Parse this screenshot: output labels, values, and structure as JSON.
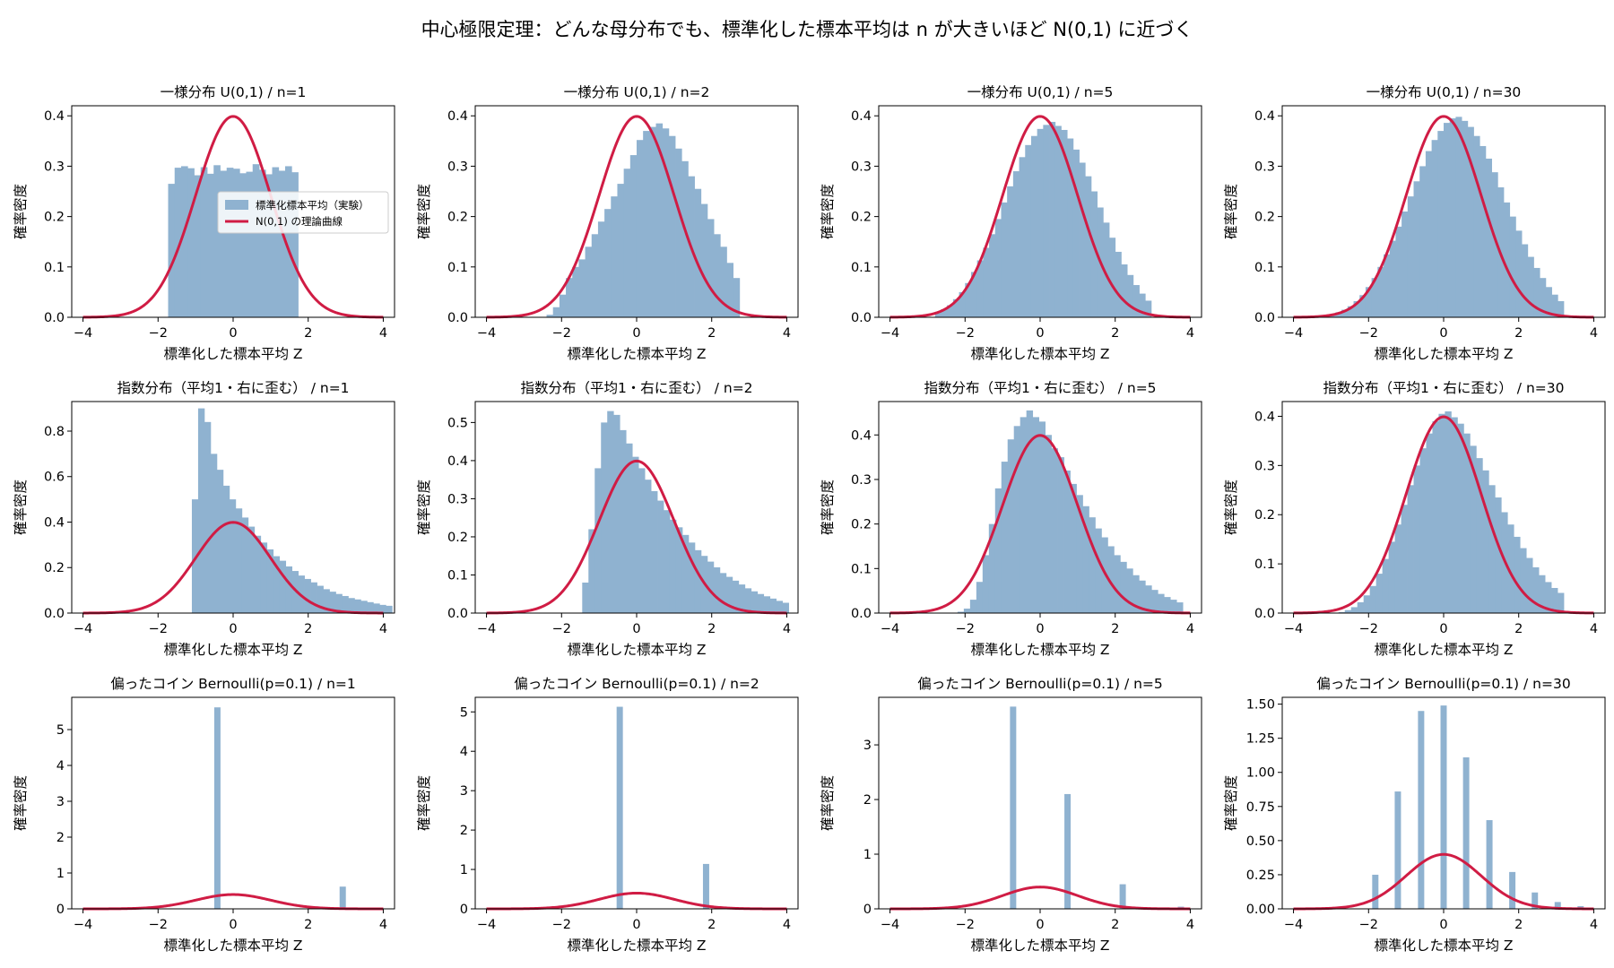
{
  "figure": {
    "suptitle": "中心極限定理：どんな母分布でも、標準化した標本平均は n が大きいほど N(0,1) に近づく",
    "xlabel": "標準化した標本平均 Z",
    "ylabel": "確率密度",
    "hist_color": "#8fb2d0",
    "curve_color": "#d01c44",
    "legend": {
      "hist_label": "標準化標本平均（実験）",
      "curve_label": "N(0,1) の理論曲線",
      "placement": "right"
    }
  },
  "chart_data": [
    {
      "type": "histogram",
      "title": "一様分布 U(0,1) / n=1",
      "xlim": [
        -4.3,
        4.3
      ],
      "ylim": [
        0,
        0.42
      ],
      "xticks": [
        -4,
        -2,
        0,
        2,
        4
      ],
      "yticks": [
        0.0,
        0.1,
        0.2,
        0.3,
        0.4
      ],
      "ytick_labels": [
        "0.0",
        "0.1",
        "0.2",
        "0.3",
        "0.4"
      ],
      "hist": {
        "x0": -1.732,
        "w": 0.1732,
        "values": [
          0.265,
          0.297,
          0.3,
          0.296,
          0.282,
          0.298,
          0.285,
          0.302,
          0.291,
          0.297,
          0.295,
          0.286,
          0.289,
          0.304,
          0.293,
          0.284,
          0.298,
          0.291,
          0.3,
          0.288
        ]
      },
      "legend": true
    },
    {
      "type": "histogram",
      "title": "一様分布 U(0,1) / n=2",
      "xlim": [
        -4.3,
        4.3
      ],
      "ylim": [
        0,
        0.42
      ],
      "xticks": [
        -4,
        -2,
        0,
        2,
        4
      ],
      "yticks": [
        0.0,
        0.1,
        0.2,
        0.3,
        0.4
      ],
      "ytick_labels": [
        "0.0",
        "0.1",
        "0.2",
        "0.3",
        "0.4"
      ],
      "hist": {
        "x0": -2.4,
        "w": 0.1714,
        "values": [
          0.005,
          0.02,
          0.045,
          0.078,
          0.1,
          0.115,
          0.14,
          0.165,
          0.19,
          0.215,
          0.24,
          0.265,
          0.295,
          0.322,
          0.352,
          0.37,
          0.378,
          0.385,
          0.375,
          0.36,
          0.335,
          0.31,
          0.28,
          0.255,
          0.225,
          0.195,
          0.165,
          0.14,
          0.108,
          0.078
        ]
      }
    },
    {
      "type": "histogram",
      "title": "一様分布 U(0,1) / n=5",
      "xlim": [
        -4.3,
        4.3
      ],
      "ylim": [
        0,
        0.42
      ],
      "xticks": [
        -4,
        -2,
        0,
        2,
        4
      ],
      "yticks": [
        0.0,
        0.1,
        0.2,
        0.3,
        0.4
      ],
      "ytick_labels": [
        "0.0",
        "0.1",
        "0.2",
        "0.3",
        "0.4"
      ],
      "hist": {
        "x0": -2.8,
        "w": 0.16,
        "values": [
          0.01,
          0.016,
          0.024,
          0.036,
          0.05,
          0.068,
          0.09,
          0.113,
          0.138,
          0.165,
          0.195,
          0.228,
          0.26,
          0.29,
          0.318,
          0.342,
          0.36,
          0.374,
          0.382,
          0.388,
          0.38,
          0.372,
          0.355,
          0.333,
          0.307,
          0.28,
          0.25,
          0.218,
          0.188,
          0.158,
          0.13,
          0.105,
          0.084,
          0.064,
          0.047,
          0.033
        ]
      }
    },
    {
      "type": "histogram",
      "title": "一様分布 U(0,1) / n=30",
      "xlim": [
        -4.3,
        4.3
      ],
      "ylim": [
        0,
        0.42
      ],
      "xticks": [
        -4,
        -2,
        0,
        2,
        4
      ],
      "yticks": [
        0.0,
        0.1,
        0.2,
        0.3,
        0.4
      ],
      "ytick_labels": [
        "0.0",
        "0.1",
        "0.2",
        "0.3",
        "0.4"
      ],
      "hist": {
        "x0": -3.2,
        "w": 0.16,
        "values": [
          0.004,
          0.006,
          0.01,
          0.015,
          0.022,
          0.032,
          0.044,
          0.06,
          0.078,
          0.1,
          0.125,
          0.152,
          0.18,
          0.21,
          0.24,
          0.27,
          0.3,
          0.33,
          0.352,
          0.37,
          0.386,
          0.395,
          0.398,
          0.39,
          0.378,
          0.36,
          0.34,
          0.315,
          0.288,
          0.258,
          0.228,
          0.2,
          0.172,
          0.145,
          0.12,
          0.098,
          0.078,
          0.06,
          0.045,
          0.032
        ]
      }
    },
    {
      "type": "histogram",
      "title": "指数分布（平均1・右に歪む） / n=1",
      "xlim": [
        -4.3,
        4.3
      ],
      "ylim": [
        0,
        0.93
      ],
      "xticks": [
        -4,
        -2,
        0,
        2,
        4
      ],
      "yticks": [
        0.0,
        0.2,
        0.4,
        0.6,
        0.8
      ],
      "ytick_labels": [
        "0.0",
        "0.2",
        "0.4",
        "0.6",
        "0.8"
      ],
      "hist": {
        "x0": -1.1,
        "w": 0.1667,
        "values": [
          0.5,
          0.9,
          0.84,
          0.7,
          0.63,
          0.56,
          0.5,
          0.46,
          0.42,
          0.38,
          0.34,
          0.31,
          0.28,
          0.25,
          0.23,
          0.205,
          0.185,
          0.165,
          0.15,
          0.135,
          0.12,
          0.105,
          0.094,
          0.084,
          0.075,
          0.066,
          0.06,
          0.054,
          0.048,
          0.042,
          0.036,
          0.032
        ]
      }
    },
    {
      "type": "histogram",
      "title": "指数分布（平均1・右に歪む） / n=2",
      "xlim": [
        -4.3,
        4.3
      ],
      "ylim": [
        0,
        0.555
      ],
      "xticks": [
        -4,
        -2,
        0,
        2,
        4
      ],
      "yticks": [
        0.0,
        0.1,
        0.2,
        0.3,
        0.4,
        0.5
      ],
      "ytick_labels": [
        "0.0",
        "0.1",
        "0.2",
        "0.3",
        "0.4",
        "0.5"
      ],
      "hist": {
        "x0": -1.45,
        "w": 0.1667,
        "values": [
          0.08,
          0.22,
          0.38,
          0.5,
          0.53,
          0.52,
          0.48,
          0.445,
          0.41,
          0.38,
          0.35,
          0.32,
          0.295,
          0.27,
          0.245,
          0.225,
          0.205,
          0.185,
          0.165,
          0.15,
          0.135,
          0.12,
          0.105,
          0.095,
          0.085,
          0.075,
          0.065,
          0.057,
          0.05,
          0.044,
          0.038,
          0.032,
          0.027
        ]
      }
    },
    {
      "type": "histogram",
      "title": "指数分布（平均1・右に歪む） / n=5",
      "xlim": [
        -4.3,
        4.3
      ],
      "ylim": [
        0,
        0.475
      ],
      "xticks": [
        -4,
        -2,
        0,
        2,
        4
      ],
      "yticks": [
        0.0,
        0.1,
        0.2,
        0.3,
        0.4
      ],
      "ytick_labels": [
        "0.0",
        "0.1",
        "0.2",
        "0.3",
        "0.4"
      ],
      "hist": {
        "x0": -2.2,
        "w": 0.1667,
        "values": [
          0.003,
          0.01,
          0.03,
          0.07,
          0.13,
          0.2,
          0.28,
          0.34,
          0.39,
          0.42,
          0.44,
          0.455,
          0.44,
          0.43,
          0.4,
          0.37,
          0.35,
          0.32,
          0.29,
          0.265,
          0.24,
          0.215,
          0.19,
          0.17,
          0.15,
          0.13,
          0.115,
          0.1,
          0.085,
          0.073,
          0.062,
          0.052,
          0.043,
          0.036,
          0.03,
          0.024
        ]
      }
    },
    {
      "type": "histogram",
      "title": "指数分布（平均1・右に歪む） / n=30",
      "xlim": [
        -4.3,
        4.3
      ],
      "ylim": [
        0,
        0.43
      ],
      "xticks": [
        -4,
        -2,
        0,
        2,
        4
      ],
      "yticks": [
        0.0,
        0.1,
        0.2,
        0.3,
        0.4
      ],
      "ytick_labels": [
        "0.0",
        "0.1",
        "0.2",
        "0.3",
        "0.4"
      ],
      "hist": {
        "x0": -2.8,
        "w": 0.1667,
        "values": [
          0.002,
          0.006,
          0.012,
          0.022,
          0.036,
          0.055,
          0.08,
          0.11,
          0.145,
          0.18,
          0.22,
          0.26,
          0.3,
          0.335,
          0.365,
          0.39,
          0.405,
          0.41,
          0.398,
          0.385,
          0.365,
          0.34,
          0.315,
          0.29,
          0.26,
          0.235,
          0.205,
          0.18,
          0.155,
          0.132,
          0.112,
          0.093,
          0.077,
          0.063,
          0.051,
          0.041
        ]
      }
    },
    {
      "type": "histogram",
      "title": "偏ったコイン Bernoulli(p=0.1) / n=1",
      "xlim": [
        -4.3,
        4.3
      ],
      "ylim": [
        0,
        5.9
      ],
      "xticks": [
        -4,
        -2,
        0,
        2,
        4
      ],
      "yticks": [
        0,
        1,
        2,
        3,
        4,
        5
      ],
      "ytick_labels": [
        "0",
        "1",
        "2",
        "3",
        "4",
        "5"
      ],
      "hist": {
        "w": 0.1667,
        "bars": [
          {
            "x": -0.42,
            "v": 5.62
          },
          {
            "x": 2.92,
            "v": 0.62
          }
        ]
      }
    },
    {
      "type": "histogram",
      "title": "偏ったコイン Bernoulli(p=0.1) / n=2",
      "xlim": [
        -4.3,
        4.3
      ],
      "ylim": [
        0,
        5.37
      ],
      "xticks": [
        -4,
        -2,
        0,
        2,
        4
      ],
      "yticks": [
        0,
        1,
        2,
        3,
        4,
        5
      ],
      "ytick_labels": [
        "0",
        "1",
        "2",
        "3",
        "4",
        "5"
      ],
      "hist": {
        "w": 0.1667,
        "bars": [
          {
            "x": -0.45,
            "v": 5.13
          },
          {
            "x": 1.85,
            "v": 1.14
          }
        ]
      }
    },
    {
      "type": "histogram",
      "title": "偏ったコイン Bernoulli(p=0.1) / n=5",
      "xlim": [
        -4.3,
        4.3
      ],
      "ylim": [
        0,
        3.87
      ],
      "xticks": [
        -4,
        -2,
        0,
        2,
        4
      ],
      "yticks": [
        0,
        1,
        2,
        3
      ],
      "ytick_labels": [
        "0",
        "1",
        "2",
        "3"
      ],
      "hist": {
        "w": 0.1667,
        "bars": [
          {
            "x": -0.72,
            "v": 3.7
          },
          {
            "x": 0.73,
            "v": 2.1
          },
          {
            "x": 2.2,
            "v": 0.45
          },
          {
            "x": 3.75,
            "v": 0.04
          }
        ]
      }
    },
    {
      "type": "histogram",
      "title": "偏ったコイン Bernoulli(p=0.1) / n=30",
      "xlim": [
        -4.3,
        4.3
      ],
      "ylim": [
        0,
        1.55
      ],
      "xticks": [
        -4,
        -2,
        0,
        2,
        4
      ],
      "yticks": [
        0.0,
        0.25,
        0.5,
        0.75,
        1.0,
        1.25,
        1.5
      ],
      "ytick_labels": [
        "0.00",
        "0.25",
        "0.50",
        "0.75",
        "1.00",
        "1.25",
        "1.50"
      ],
      "hist": {
        "w": 0.1667,
        "bars": [
          {
            "x": -1.82,
            "v": 0.25
          },
          {
            "x": -1.22,
            "v": 0.86
          },
          {
            "x": -0.6,
            "v": 1.45
          },
          {
            "x": 0.0,
            "v": 1.49
          },
          {
            "x": 0.6,
            "v": 1.11
          },
          {
            "x": 1.22,
            "v": 0.65
          },
          {
            "x": 1.83,
            "v": 0.27
          },
          {
            "x": 2.43,
            "v": 0.12
          },
          {
            "x": 3.04,
            "v": 0.05
          },
          {
            "x": 3.65,
            "v": 0.02
          }
        ]
      }
    }
  ]
}
